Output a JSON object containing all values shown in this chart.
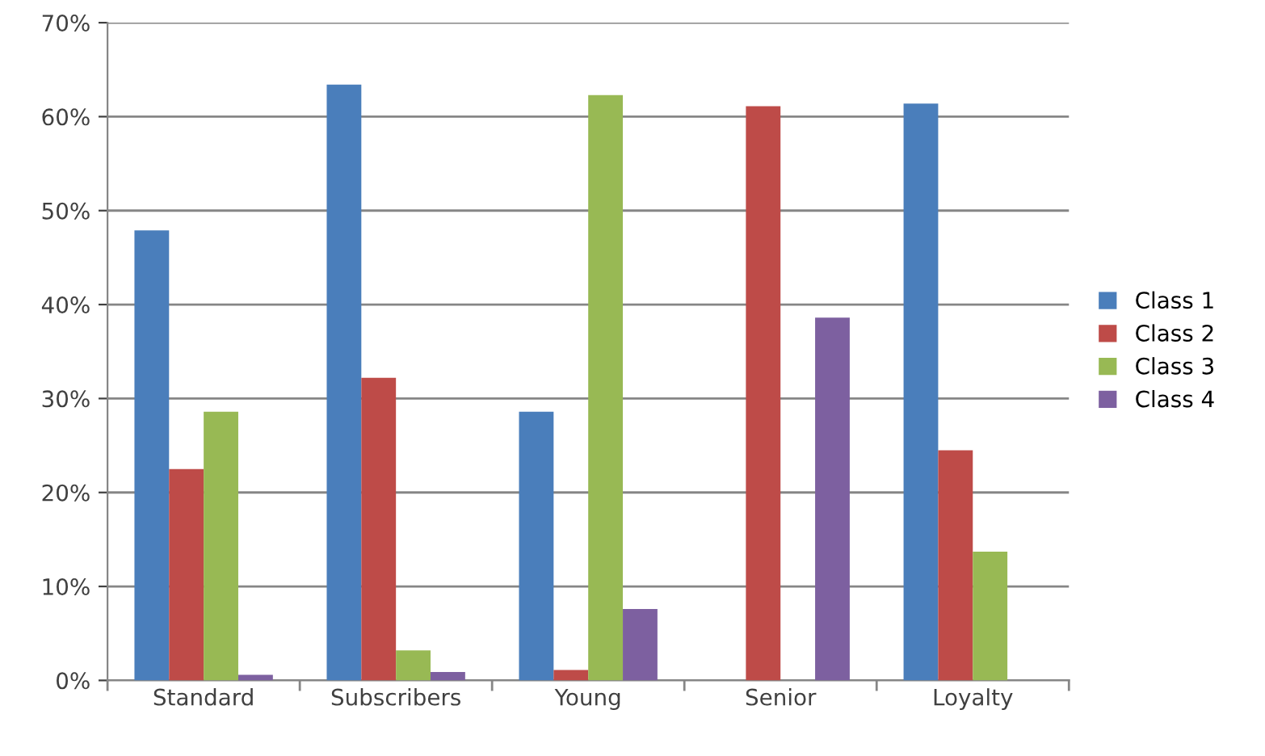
{
  "chart_data": {
    "type": "bar",
    "categories": [
      "Standard",
      "Subscribers",
      "Young",
      "Senior",
      "Loyalty"
    ],
    "series": [
      {
        "name": "Class 1",
        "color": "#4a7ebb",
        "values": [
          47.9,
          63.4,
          28.6,
          0,
          61.4
        ]
      },
      {
        "name": "Class 2",
        "color": "#be4b48",
        "values": [
          22.5,
          32.2,
          1.1,
          61.1,
          24.5
        ]
      },
      {
        "name": "Class 3",
        "color": "#98b954",
        "values": [
          28.6,
          3.2,
          62.3,
          0,
          13.7
        ]
      },
      {
        "name": "Class 4",
        "color": "#7d60a0",
        "values": [
          0.6,
          0.9,
          7.6,
          38.6,
          0
        ]
      }
    ],
    "ylim": [
      0,
      70
    ],
    "yticks": [
      {
        "value": 0,
        "label": "0%"
      },
      {
        "value": 10,
        "label": "10%"
      },
      {
        "value": 20,
        "label": "20%"
      },
      {
        "value": 30,
        "label": "30%"
      },
      {
        "value": 40,
        "label": "40%"
      },
      {
        "value": 50,
        "label": "50%"
      },
      {
        "value": 60,
        "label": "60%"
      },
      {
        "value": 70,
        "label": "70%"
      }
    ],
    "grid": "y",
    "legend": "right"
  }
}
